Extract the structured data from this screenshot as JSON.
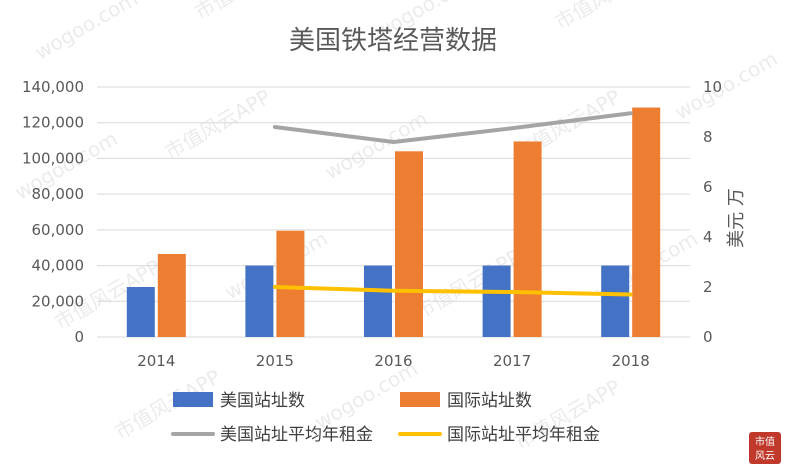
{
  "chart_data": {
    "type": "bar",
    "title": "美国铁塔经营数据",
    "categories": [
      "2014",
      "2015",
      "2016",
      "2017",
      "2018"
    ],
    "series": [
      {
        "name": "美国站址数",
        "kind": "bar",
        "axis": "left",
        "color": "#4472c4",
        "values": [
          28000,
          40000,
          40000,
          40000,
          40000
        ]
      },
      {
        "name": "国际站址数",
        "kind": "bar",
        "axis": "left",
        "color": "#ed7d31",
        "values": [
          46500,
          59500,
          104000,
          109500,
          128500
        ]
      },
      {
        "name": "美国站址平均年租金",
        "kind": "line",
        "axis": "right",
        "color": "#a5a5a5",
        "values": [
          null,
          8.4,
          7.8,
          8.35,
          8.95
        ]
      },
      {
        "name": "国际站址平均年租金",
        "kind": "line",
        "axis": "right",
        "color": "#ffc000",
        "values": [
          null,
          2.0,
          1.85,
          1.8,
          1.7
        ]
      }
    ],
    "y_left": {
      "min": 0,
      "max": 140000,
      "ticks": [
        "0",
        "20,000",
        "40,000",
        "60,000",
        "80,000",
        "100,000",
        "120,000",
        "140,000"
      ]
    },
    "y_right": {
      "min": 0,
      "max": 10,
      "label": "美元 万",
      "ticks": [
        "0",
        "2",
        "4",
        "6",
        "8",
        "10"
      ]
    },
    "grid": true,
    "legend": "bottom"
  },
  "watermark": {
    "text_site": "wogoo.com",
    "text_app": "市值风云APP",
    "logo": "市值风云"
  }
}
